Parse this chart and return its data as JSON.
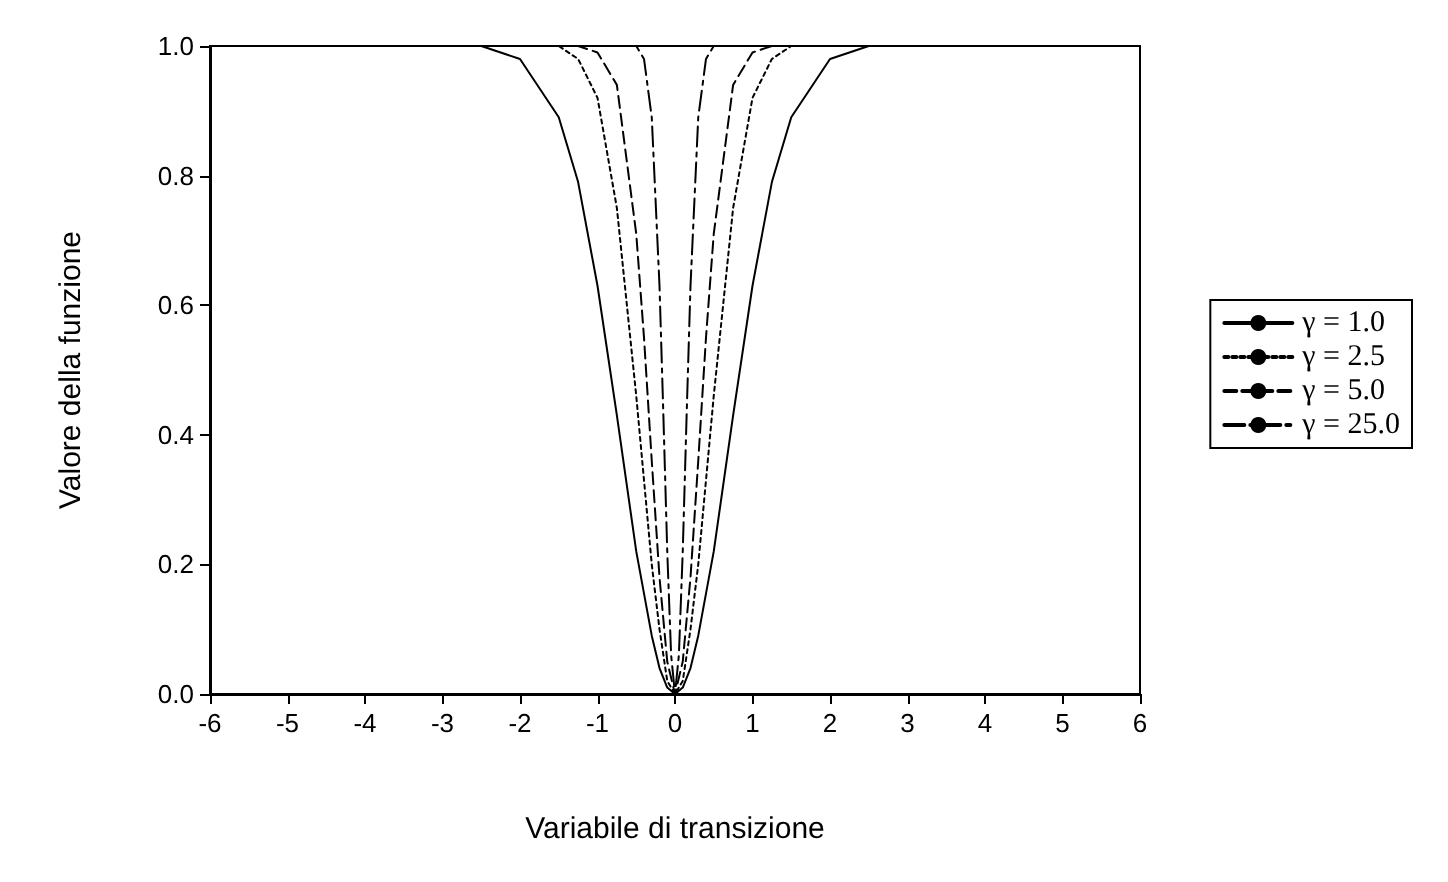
{
  "chart_data": {
    "type": "line",
    "xlabel": "Variabile di transizione",
    "ylabel": "Valore della funzione",
    "xlim": [
      -6,
      6
    ],
    "xticks": [
      -6,
      -5,
      -4,
      -3,
      -2,
      -1,
      0,
      1,
      2,
      3,
      4,
      5,
      6
    ],
    "ylim": [
      0,
      1
    ],
    "yticks": [
      {
        "value": 0,
        "label": "0.0"
      },
      {
        "value": 0.2,
        "label": "0.2"
      },
      {
        "value": 0.4,
        "label": "0.4"
      },
      {
        "value": 0.6,
        "label": "0.6"
      },
      {
        "value": 0.8,
        "label": "0.8"
      },
      {
        "value": 1,
        "label": "1.0"
      }
    ],
    "grid": false,
    "legend": "right",
    "marker": "none",
    "series": [
      {
        "name": "γ = 1.0",
        "color": "#000000",
        "line_style": "solid",
        "x": [
          -5,
          -3,
          -2.5,
          -2,
          -1.5,
          -1.25,
          -1,
          -0.75,
          -0.5,
          -0.3,
          -0.2,
          -0.1,
          0,
          0.1,
          0.2,
          0.3,
          0.5,
          0.75,
          1,
          1.25,
          1.5,
          2,
          2.5,
          3,
          5
        ],
        "values": [
          1,
          1,
          1,
          0.98,
          0.89,
          0.79,
          0.63,
          0.43,
          0.22,
          0.09,
          0.04,
          0.01,
          0,
          0.01,
          0.04,
          0.09,
          0.22,
          0.43,
          0.63,
          0.79,
          0.89,
          0.98,
          1,
          1,
          1
        ]
      },
      {
        "name": "γ = 2.5",
        "color": "#000000",
        "line_style": "dotted",
        "x": [
          -5,
          -2,
          -1.5,
          -1.25,
          -1,
          -0.75,
          -0.5,
          -0.4,
          -0.3,
          -0.2,
          -0.1,
          0,
          0.1,
          0.2,
          0.3,
          0.4,
          0.5,
          0.75,
          1,
          1.25,
          1.5,
          2,
          5
        ],
        "values": [
          1,
          1,
          1,
          0.98,
          0.92,
          0.75,
          0.46,
          0.33,
          0.2,
          0.1,
          0.02,
          0,
          0.02,
          0.1,
          0.2,
          0.33,
          0.46,
          0.75,
          0.92,
          0.98,
          1,
          1,
          1
        ]
      },
      {
        "name": "γ = 5.0",
        "color": "#000000",
        "line_style": "dashed",
        "x": [
          -5,
          -1.5,
          -1.25,
          -1,
          -0.75,
          -0.5,
          -0.4,
          -0.3,
          -0.2,
          -0.1,
          0,
          0.1,
          0.2,
          0.3,
          0.4,
          0.5,
          0.75,
          1,
          1.25,
          1.5,
          5
        ],
        "values": [
          1,
          1,
          1,
          0.99,
          0.94,
          0.71,
          0.55,
          0.36,
          0.18,
          0.05,
          0,
          0.05,
          0.18,
          0.36,
          0.55,
          0.71,
          0.94,
          0.99,
          1,
          1,
          1
        ]
      },
      {
        "name": "γ = 25.0",
        "color": "#000000",
        "line_style": "dashdot",
        "x": [
          -5,
          -0.75,
          -0.5,
          -0.4,
          -0.3,
          -0.2,
          -0.15,
          -0.1,
          -0.05,
          0,
          0.05,
          0.1,
          0.15,
          0.2,
          0.3,
          0.4,
          0.5,
          0.75,
          5
        ],
        "values": [
          1,
          1,
          1,
          0.98,
          0.89,
          0.63,
          0.43,
          0.22,
          0.06,
          0,
          0.06,
          0.22,
          0.43,
          0.63,
          0.89,
          0.98,
          1,
          1,
          1
        ]
      }
    ]
  }
}
